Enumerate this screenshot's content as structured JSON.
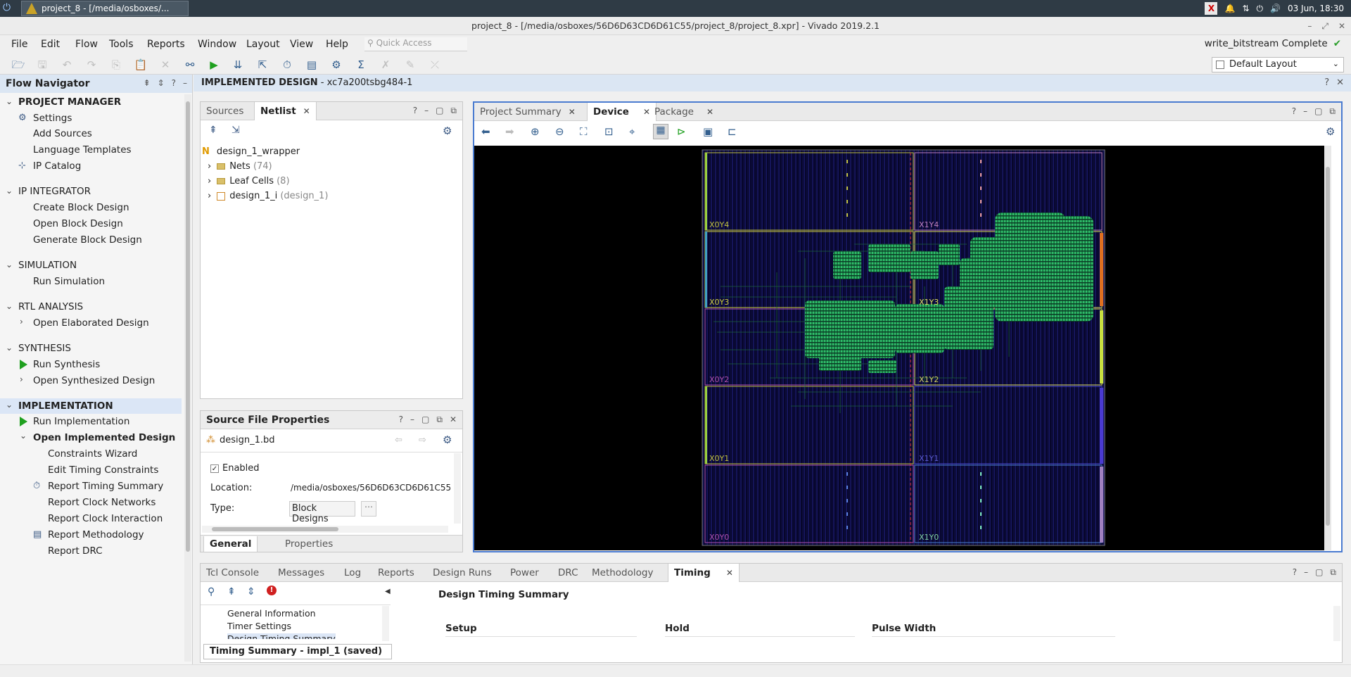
{
  "taskbar": {
    "task_title": "project_8 - [/media/osboxes/...",
    "clock": "03 Jun, 18:30"
  },
  "window": {
    "title": "project_8 - [/media/osboxes/56D6D63CD6D61C55/project_8/project_8.xpr] - Vivado 2019.2.1"
  },
  "menu": {
    "items": [
      "File",
      "Edit",
      "Flow",
      "Tools",
      "Reports",
      "Window",
      "Layout",
      "View",
      "Help"
    ],
    "quick_access": "Quick Access"
  },
  "status": {
    "text": "write_bitstream Complete"
  },
  "layout_select": {
    "value": "Default Layout"
  },
  "flow_navigator": {
    "title": "Flow Navigator",
    "items": [
      "PROJECT MANAGER",
      "Settings",
      "Add Sources",
      "Language Templates",
      "IP Catalog",
      "IP INTEGRATOR",
      "Create Block Design",
      "Open Block Design",
      "Generate Block Design",
      "SIMULATION",
      "Run Simulation",
      "RTL ANALYSIS",
      "Open Elaborated Design",
      "SYNTHESIS",
      "Run Synthesis",
      "Open Synthesized Design",
      "IMPLEMENTATION",
      "Run Implementation",
      "Open Implemented Design",
      "Constraints Wizard",
      "Edit Timing Constraints",
      "Report Timing Summary",
      "Report Clock Networks",
      "Report Clock Interaction",
      "Report Methodology",
      "Report DRC"
    ]
  },
  "impl_header": {
    "title": "IMPLEMENTED DESIGN",
    "part": " - xc7a200tsbg484-1"
  },
  "netlist_panel": {
    "tabs": [
      "Sources",
      "Netlist"
    ],
    "root": "design_1_wrapper",
    "nets_label": "Nets",
    "nets_count": "(74)",
    "leaf_label": "Leaf Cells",
    "leaf_count": "(8)",
    "inst_label": "design_1_i",
    "inst_ref": "(design_1)"
  },
  "sfp_panel": {
    "title": "Source File Properties",
    "file": "design_1.bd",
    "enabled_label": "Enabled",
    "location_label": "Location:",
    "location_value": "/media/osboxes/56D6D63CD6D61C55",
    "type_label": "Type:",
    "type_value": "Block Designs",
    "tabs": [
      "General",
      "Properties"
    ]
  },
  "device_panel": {
    "tabs": [
      "Project Summary",
      "Device",
      "Package"
    ],
    "regions": [
      "X0Y4",
      "X1Y4",
      "X0Y3",
      "X1Y3",
      "X0Y2",
      "X1Y2",
      "X0Y1",
      "X1Y1",
      "X0Y0",
      "X1Y0"
    ]
  },
  "bottom_panel": {
    "tabs": [
      "Tcl Console",
      "Messages",
      "Log",
      "Reports",
      "Design Runs",
      "Power",
      "DRC",
      "Methodology",
      "Timing"
    ],
    "tree": [
      "General Information",
      "Timer Settings",
      "Design Timing Summary"
    ],
    "summary_title": "Design Timing Summary",
    "columns": [
      "Setup",
      "Hold",
      "Pulse Width"
    ],
    "footer": "Timing Summary - impl_1 (saved)"
  },
  "colors": {
    "accent": "#dbe6f3",
    "placement": "#2fbf6a",
    "canvas": "#000000"
  }
}
